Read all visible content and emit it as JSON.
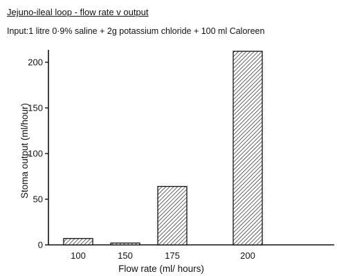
{
  "chart_data": {
    "type": "bar",
    "title": "Jejuno-ileal loop - flow rate v output",
    "subtitle": "Input:1 litre 0·9% saline + 2g potassium chloride + 100 ml Caloreen",
    "xlabel": "Flow rate (ml/ hours)",
    "ylabel": "Stoma output (ml/hour)",
    "categories": [
      "100",
      "150",
      "175",
      "200"
    ],
    "values": [
      7,
      2,
      64,
      212
    ],
    "ylim": [
      0,
      205
    ],
    "yticks": [
      "0",
      "50",
      "100",
      "150",
      "200"
    ],
    "grid": false,
    "bar_fill": "hatched",
    "colors": {
      "ink": "#111111",
      "background": "#ffffff"
    }
  }
}
